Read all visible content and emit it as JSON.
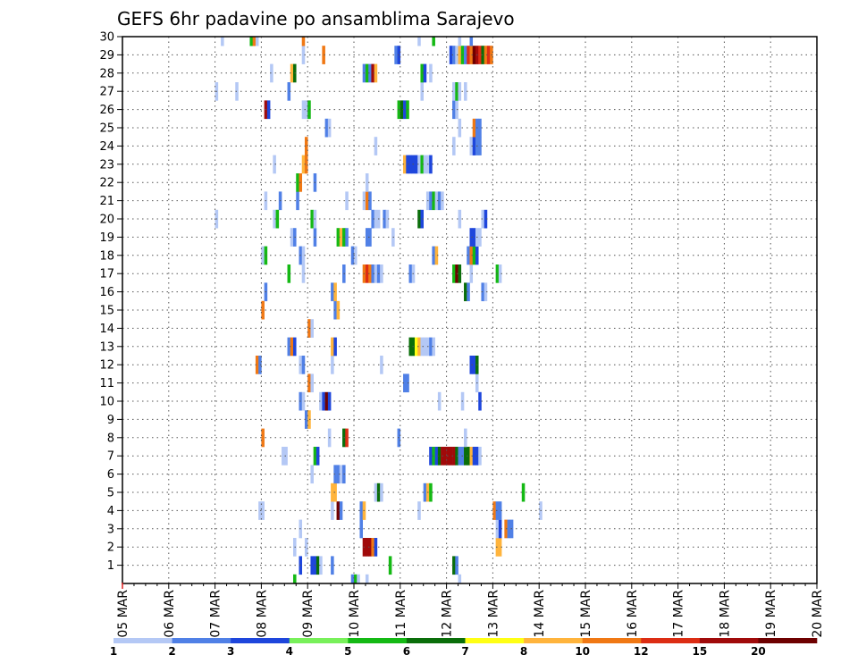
{
  "chart_data": {
    "type": "heatmap",
    "title": "GEFS 6hr padavine po ansamblima Sarajevo",
    "xlabel": "",
    "ylabel": "",
    "x_start": "05 MAR 00Z",
    "x_step_hours": 6,
    "x_ticks": [
      "05 MAR",
      "06 MAR",
      "07 MAR",
      "08 MAR",
      "09 MAR",
      "10 MAR",
      "11 MAR",
      "12 MAR",
      "13 MAR",
      "14 MAR",
      "15 MAR",
      "16 MAR",
      "17 MAR",
      "18 MAR",
      "19 MAR",
      "20 MAR"
    ],
    "y_ticks": [
      "1",
      "2",
      "3",
      "4",
      "5",
      "6",
      "7",
      "8",
      "9",
      "10",
      "11",
      "12",
      "13",
      "14",
      "15",
      "16",
      "17",
      "18",
      "19",
      "20",
      "21",
      "22",
      "23",
      "24",
      "25",
      "26",
      "27",
      "28",
      "29",
      "30"
    ],
    "ylim": [
      0,
      30
    ],
    "grid": true,
    "colorbar": {
      "labels": [
        "1",
        "2",
        "3",
        "4",
        "5",
        "6",
        "7",
        "8",
        "10",
        "12",
        "15",
        "20"
      ],
      "colors": [
        "#b4c8f5",
        "#5080e6",
        "#1e46dc",
        "#78f05a",
        "#14b914",
        "#0a6e0a",
        "#ffff14",
        "#ffb43c",
        "#f07814",
        "#dc2d14",
        "#a00a0a",
        "#6e0000"
      ]
    },
    "cells": [
      [
        1,
        61,
        3
      ],
      [
        1,
        65,
        3
      ],
      [
        1,
        66,
        3
      ],
      [
        1,
        67,
        6
      ],
      [
        1,
        68,
        1
      ],
      [
        1,
        72,
        2
      ],
      [
        1,
        92,
        5
      ],
      [
        1,
        114,
        6
      ],
      [
        1,
        115,
        2
      ],
      [
        2,
        59,
        1
      ],
      [
        2,
        63,
        1
      ],
      [
        2,
        83,
        11
      ],
      [
        2,
        84,
        11
      ],
      [
        2,
        85,
        11
      ],
      [
        2,
        86,
        9
      ],
      [
        2,
        87,
        3
      ],
      [
        2,
        129,
        8
      ],
      [
        2,
        130,
        8
      ],
      [
        3,
        61,
        1
      ],
      [
        3,
        82,
        2
      ],
      [
        3,
        129,
        1
      ],
      [
        3,
        130,
        3
      ],
      [
        3,
        132,
        9
      ],
      [
        3,
        133,
        2
      ],
      [
        3,
        134,
        2
      ],
      [
        4,
        47,
        1
      ],
      [
        4,
        48,
        1
      ],
      [
        4,
        72,
        1
      ],
      [
        4,
        74,
        12
      ],
      [
        4,
        75,
        2
      ],
      [
        4,
        82,
        2
      ],
      [
        4,
        83,
        8
      ],
      [
        4,
        102,
        1
      ],
      [
        4,
        128,
        9
      ],
      [
        4,
        129,
        2
      ],
      [
        4,
        130,
        2
      ],
      [
        4,
        144,
        1
      ],
      [
        5,
        72,
        8
      ],
      [
        5,
        73,
        8
      ],
      [
        5,
        87,
        1
      ],
      [
        5,
        88,
        6
      ],
      [
        5,
        89,
        1
      ],
      [
        5,
        104,
        2
      ],
      [
        5,
        105,
        8
      ],
      [
        5,
        106,
        5
      ],
      [
        5,
        138,
        5
      ],
      [
        6,
        65,
        1
      ],
      [
        6,
        73,
        2
      ],
      [
        6,
        74,
        2
      ],
      [
        6,
        75,
        1
      ],
      [
        6,
        76,
        2
      ],
      [
        7,
        55,
        1
      ],
      [
        7,
        56,
        1
      ],
      [
        7,
        66,
        5
      ],
      [
        7,
        67,
        3
      ],
      [
        7,
        106,
        3
      ],
      [
        7,
        107,
        5
      ],
      [
        7,
        108,
        3
      ],
      [
        7,
        109,
        6
      ],
      [
        7,
        110,
        11
      ],
      [
        7,
        111,
        11
      ],
      [
        7,
        112,
        11
      ],
      [
        7,
        113,
        11
      ],
      [
        7,
        114,
        11
      ],
      [
        7,
        115,
        6
      ],
      [
        7,
        116,
        2
      ],
      [
        7,
        117,
        2
      ],
      [
        7,
        118,
        6
      ],
      [
        7,
        119,
        6
      ],
      [
        7,
        120,
        8
      ],
      [
        7,
        121,
        3
      ],
      [
        7,
        122,
        3
      ],
      [
        7,
        123,
        1
      ],
      [
        8,
        48,
        9
      ],
      [
        8,
        71,
        1
      ],
      [
        8,
        76,
        6
      ],
      [
        8,
        77,
        10
      ],
      [
        8,
        95,
        2
      ],
      [
        8,
        118,
        1
      ],
      [
        9,
        63,
        2
      ],
      [
        9,
        64,
        8
      ],
      [
        10,
        61,
        2
      ],
      [
        10,
        62,
        1
      ],
      [
        10,
        68,
        1
      ],
      [
        10,
        69,
        3
      ],
      [
        10,
        70,
        12
      ],
      [
        10,
        71,
        3
      ],
      [
        10,
        109,
        1
      ],
      [
        10,
        117,
        1
      ],
      [
        10,
        123,
        3
      ],
      [
        11,
        64,
        9
      ],
      [
        11,
        65,
        1
      ],
      [
        11,
        97,
        2
      ],
      [
        11,
        98,
        2
      ],
      [
        11,
        122,
        1
      ],
      [
        12,
        46,
        9
      ],
      [
        12,
        47,
        2
      ],
      [
        12,
        61,
        1
      ],
      [
        12,
        62,
        2
      ],
      [
        12,
        72,
        1
      ],
      [
        12,
        89,
        1
      ],
      [
        12,
        120,
        3
      ],
      [
        12,
        121,
        3
      ],
      [
        12,
        122,
        6
      ],
      [
        13,
        57,
        2
      ],
      [
        13,
        58,
        9
      ],
      [
        13,
        59,
        3
      ],
      [
        13,
        72,
        8
      ],
      [
        13,
        73,
        3
      ],
      [
        13,
        99,
        6
      ],
      [
        13,
        100,
        6
      ],
      [
        13,
        101,
        7
      ],
      [
        13,
        102,
        8
      ],
      [
        13,
        103,
        1
      ],
      [
        13,
        104,
        1
      ],
      [
        13,
        105,
        1
      ],
      [
        13,
        106,
        2
      ],
      [
        13,
        107,
        1
      ],
      [
        14,
        64,
        9
      ],
      [
        14,
        65,
        1
      ],
      [
        15,
        48,
        9
      ],
      [
        15,
        73,
        2
      ],
      [
        15,
        74,
        8
      ],
      [
        16,
        49,
        2
      ],
      [
        16,
        72,
        2
      ],
      [
        16,
        73,
        8
      ],
      [
        16,
        118,
        6
      ],
      [
        16,
        119,
        2
      ],
      [
        16,
        124,
        2
      ],
      [
        16,
        125,
        1
      ],
      [
        17,
        57,
        5
      ],
      [
        17,
        62,
        1
      ],
      [
        17,
        76,
        2
      ],
      [
        17,
        83,
        9
      ],
      [
        17,
        84,
        10
      ],
      [
        17,
        85,
        9
      ],
      [
        17,
        86,
        2
      ],
      [
        17,
        87,
        1
      ],
      [
        17,
        88,
        2
      ],
      [
        17,
        89,
        1
      ],
      [
        17,
        99,
        2
      ],
      [
        17,
        100,
        1
      ],
      [
        17,
        114,
        5
      ],
      [
        17,
        115,
        12
      ],
      [
        17,
        116,
        6
      ],
      [
        17,
        120,
        1
      ],
      [
        17,
        129,
        5
      ],
      [
        17,
        130,
        1
      ],
      [
        18,
        48,
        1
      ],
      [
        18,
        49,
        5
      ],
      [
        18,
        61,
        2
      ],
      [
        18,
        62,
        1
      ],
      [
        18,
        79,
        2
      ],
      [
        18,
        80,
        1
      ],
      [
        18,
        107,
        2
      ],
      [
        18,
        108,
        8
      ],
      [
        18,
        119,
        2
      ],
      [
        18,
        120,
        9
      ],
      [
        18,
        121,
        5
      ],
      [
        18,
        122,
        3
      ],
      [
        19,
        58,
        1
      ],
      [
        19,
        59,
        2
      ],
      [
        19,
        66,
        2
      ],
      [
        19,
        74,
        5
      ],
      [
        19,
        75,
        8
      ],
      [
        19,
        76,
        5
      ],
      [
        19,
        77,
        2
      ],
      [
        19,
        84,
        2
      ],
      [
        19,
        85,
        2
      ],
      [
        19,
        93,
        1
      ],
      [
        19,
        120,
        3
      ],
      [
        19,
        121,
        3
      ],
      [
        19,
        122,
        1
      ],
      [
        19,
        123,
        1
      ],
      [
        20,
        32,
        1
      ],
      [
        20,
        52,
        1
      ],
      [
        20,
        53,
        5
      ],
      [
        20,
        65,
        5
      ],
      [
        20,
        66,
        1
      ],
      [
        20,
        86,
        2
      ],
      [
        20,
        87,
        1
      ],
      [
        20,
        88,
        1
      ],
      [
        20,
        90,
        2
      ],
      [
        20,
        91,
        1
      ],
      [
        20,
        102,
        6
      ],
      [
        20,
        103,
        3
      ],
      [
        20,
        116,
        1
      ],
      [
        20,
        124,
        1
      ],
      [
        20,
        125,
        3
      ],
      [
        21,
        49,
        1
      ],
      [
        21,
        54,
        2
      ],
      [
        21,
        60,
        2
      ],
      [
        21,
        77,
        1
      ],
      [
        21,
        83,
        1
      ],
      [
        21,
        84,
        9
      ],
      [
        21,
        85,
        2
      ],
      [
        21,
        105,
        1
      ],
      [
        21,
        106,
        2
      ],
      [
        21,
        107,
        5
      ],
      [
        21,
        108,
        1
      ],
      [
        21,
        109,
        2
      ],
      [
        21,
        110,
        1
      ],
      [
        22,
        60,
        5
      ],
      [
        22,
        61,
        9
      ],
      [
        22,
        66,
        2
      ],
      [
        22,
        84,
        1
      ],
      [
        23,
        52,
        1
      ],
      [
        23,
        62,
        8
      ],
      [
        23,
        63,
        9
      ],
      [
        23,
        97,
        8
      ],
      [
        23,
        98,
        3
      ],
      [
        23,
        99,
        3
      ],
      [
        23,
        100,
        3
      ],
      [
        23,
        101,
        3
      ],
      [
        23,
        102,
        1
      ],
      [
        23,
        103,
        5
      ],
      [
        23,
        104,
        1
      ],
      [
        23,
        105,
        1
      ],
      [
        23,
        106,
        3
      ],
      [
        24,
        63,
        9
      ],
      [
        24,
        87,
        1
      ],
      [
        24,
        114,
        1
      ],
      [
        24,
        120,
        1
      ],
      [
        24,
        121,
        3
      ],
      [
        24,
        122,
        2
      ],
      [
        24,
        123,
        2
      ],
      [
        25,
        70,
        2
      ],
      [
        25,
        71,
        1
      ],
      [
        25,
        116,
        1
      ],
      [
        25,
        121,
        9
      ],
      [
        25,
        122,
        2
      ],
      [
        25,
        123,
        2
      ],
      [
        26,
        49,
        11
      ],
      [
        26,
        50,
        3
      ],
      [
        26,
        62,
        1
      ],
      [
        26,
        63,
        1
      ],
      [
        26,
        64,
        5
      ],
      [
        26,
        95,
        5
      ],
      [
        26,
        96,
        6
      ],
      [
        26,
        97,
        3
      ],
      [
        26,
        98,
        5
      ],
      [
        26,
        114,
        2
      ],
      [
        26,
        115,
        1
      ],
      [
        27,
        32,
        1
      ],
      [
        27,
        39,
        1
      ],
      [
        27,
        57,
        2
      ],
      [
        27,
        103,
        1
      ],
      [
        27,
        114,
        1
      ],
      [
        27,
        115,
        5
      ],
      [
        27,
        116,
        1
      ],
      [
        27,
        118,
        1
      ],
      [
        28,
        51,
        1
      ],
      [
        28,
        58,
        8
      ],
      [
        28,
        59,
        6
      ],
      [
        28,
        83,
        2
      ],
      [
        28,
        84,
        5
      ],
      [
        28,
        85,
        2
      ],
      [
        28,
        86,
        11
      ],
      [
        28,
        87,
        8
      ],
      [
        28,
        103,
        5
      ],
      [
        28,
        104,
        3
      ],
      [
        28,
        106,
        1
      ],
      [
        29,
        62,
        1
      ],
      [
        29,
        69,
        9
      ],
      [
        29,
        94,
        2
      ],
      [
        29,
        95,
        3
      ],
      [
        29,
        113,
        3
      ],
      [
        29,
        114,
        2
      ],
      [
        29,
        115,
        1
      ],
      [
        29,
        116,
        8
      ],
      [
        29,
        117,
        5
      ],
      [
        29,
        118,
        2
      ],
      [
        29,
        119,
        10
      ],
      [
        29,
        120,
        9
      ],
      [
        29,
        121,
        12
      ],
      [
        29,
        122,
        11
      ],
      [
        29,
        123,
        10
      ],
      [
        29,
        124,
        6
      ],
      [
        29,
        125,
        9
      ],
      [
        29,
        126,
        10
      ],
      [
        29,
        127,
        9
      ],
      [
        30,
        34,
        1
      ],
      [
        30,
        44,
        5
      ],
      [
        30,
        45,
        9
      ],
      [
        30,
        46,
        1
      ],
      [
        30,
        62,
        9
      ],
      [
        30,
        102,
        1
      ],
      [
        30,
        107,
        5
      ],
      [
        30,
        116,
        1
      ],
      [
        30,
        120,
        2
      ],
      [
        0,
        59,
        5
      ],
      [
        0,
        79,
        2
      ],
      [
        0,
        80,
        5
      ],
      [
        0,
        81,
        1
      ],
      [
        0,
        84,
        1
      ],
      [
        0,
        116,
        1
      ]
    ]
  }
}
